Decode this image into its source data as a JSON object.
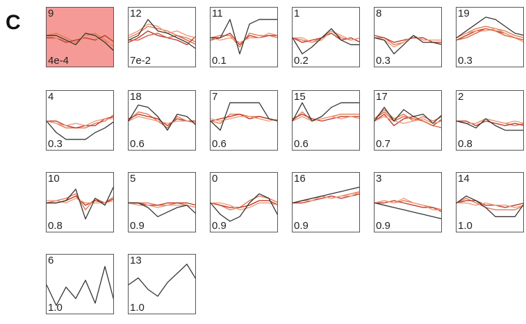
{
  "panel_label": "C",
  "chart_data": {
    "type": "line",
    "x": [
      1,
      2,
      3,
      4,
      5,
      6,
      7,
      8
    ],
    "ylim": [
      -1,
      1
    ],
    "colors": {
      "highlight_fill": "#f59a96",
      "member_line": "#e07a50",
      "alt_line": "#c0392b",
      "centroid_line": "#333333"
    },
    "clusters": [
      {
        "id": "9",
        "pvalue": "4e-4",
        "highlight": true,
        "centroid": [
          0.1,
          0.1,
          -0.1,
          -0.3,
          0.2,
          0.1,
          -0.2,
          -0.6
        ],
        "members": [
          [
            0.1,
            0.2,
            0.0,
            -0.2,
            0.1,
            0.2,
            -0.1,
            -0.4
          ],
          [
            0.0,
            0.0,
            -0.2,
            -0.1,
            0.0,
            -0.1,
            0.1,
            -0.2
          ],
          [
            0.1,
            0.0,
            -0.1,
            -0.3,
            0.1,
            0.0,
            -0.2,
            -0.3
          ]
        ]
      },
      {
        "id": "12",
        "pvalue": "7e-2",
        "highlight": false,
        "centroid": [
          -0.1,
          0.1,
          0.8,
          0.3,
          0.2,
          0.0,
          -0.2,
          -0.5
        ],
        "members": [
          [
            0.0,
            0.2,
            0.5,
            0.4,
            0.3,
            0.1,
            0.0,
            -0.2
          ],
          [
            -0.2,
            0.0,
            0.3,
            0.1,
            0.0,
            -0.1,
            -0.3,
            0.1
          ],
          [
            0.1,
            0.3,
            0.6,
            0.5,
            0.2,
            0.3,
            0.1,
            0.0
          ],
          [
            -0.1,
            -0.1,
            0.1,
            0.2,
            0.0,
            0.1,
            -0.1,
            -0.3
          ]
        ]
      },
      {
        "id": "11",
        "pvalue": "0.1",
        "highlight": false,
        "centroid": [
          0.0,
          0.0,
          0.8,
          -0.7,
          0.6,
          0.8,
          0.8,
          0.8
        ],
        "members": [
          [
            0.0,
            0.1,
            0.1,
            -0.4,
            0.2,
            0.1,
            0.1,
            0.0
          ],
          [
            -0.1,
            0.0,
            0.2,
            -0.3,
            0.1,
            0.0,
            0.1,
            0.1
          ],
          [
            0.0,
            -0.1,
            0.0,
            -0.2,
            0.0,
            0.0,
            0.2,
            0.1
          ]
        ]
      },
      {
        "id": "1",
        "pvalue": "0.2",
        "highlight": false,
        "centroid": [
          0.0,
          -0.7,
          -0.4,
          0.0,
          0.4,
          -0.1,
          -0.3,
          -0.3
        ],
        "members": [
          [
            0.0,
            -0.1,
            -0.2,
            0.0,
            0.3,
            0.0,
            -0.1,
            0.0
          ],
          [
            0.0,
            -0.2,
            -0.1,
            0.0,
            0.2,
            -0.1,
            0.0,
            -0.2
          ],
          [
            0.0,
            0.0,
            -0.2,
            -0.1,
            0.3,
            0.1,
            -0.1,
            0.0
          ]
        ]
      },
      {
        "id": "8",
        "pvalue": "0.3",
        "highlight": false,
        "centroid": [
          0.0,
          -0.1,
          -0.7,
          -0.3,
          0.1,
          -0.2,
          -0.2,
          -0.3
        ],
        "members": [
          [
            0.0,
            0.0,
            -0.3,
            -0.2,
            0.1,
            -0.1,
            -0.1,
            -0.1
          ],
          [
            0.1,
            0.0,
            -0.2,
            -0.1,
            0.0,
            0.0,
            -0.2,
            -0.2
          ],
          [
            0.0,
            -0.1,
            -0.4,
            -0.2,
            0.1,
            -0.1,
            -0.1,
            -0.1
          ]
        ]
      },
      {
        "id": "19",
        "pvalue": "0.3",
        "highlight": false,
        "centroid": [
          0.0,
          0.3,
          0.6,
          0.9,
          0.8,
          0.5,
          0.2,
          0.1
        ],
        "members": [
          [
            0.0,
            0.2,
            0.4,
            0.5,
            0.4,
            0.3,
            0.1,
            0.0
          ],
          [
            -0.1,
            0.1,
            0.3,
            0.4,
            0.3,
            0.2,
            0.0,
            -0.1
          ],
          [
            0.0,
            0.2,
            0.3,
            0.3,
            0.4,
            0.2,
            0.0,
            -0.2
          ],
          [
            -0.1,
            0.0,
            0.2,
            0.4,
            0.3,
            0.1,
            0.0,
            -0.1
          ]
        ]
      },
      {
        "id": "4",
        "pvalue": "0.3",
        "highlight": false,
        "centroid": [
          0.0,
          -0.5,
          -0.8,
          -0.8,
          -0.8,
          -0.5,
          -0.3,
          0.0
        ],
        "members": [
          [
            0.0,
            -0.1,
            -0.3,
            -0.3,
            -0.3,
            -0.1,
            0.0,
            0.3
          ],
          [
            0.0,
            0.0,
            -0.2,
            -0.3,
            -0.2,
            -0.2,
            0.1,
            0.2
          ],
          [
            0.0,
            -0.1,
            -0.2,
            -0.1,
            -0.2,
            0.0,
            0.1,
            0.1
          ]
        ]
      },
      {
        "id": "18",
        "pvalue": "0.6",
        "highlight": false,
        "centroid": [
          0.0,
          0.7,
          0.6,
          0.2,
          -0.4,
          0.3,
          0.2,
          -0.2
        ],
        "members": [
          [
            0.0,
            0.4,
            0.3,
            0.0,
            -0.3,
            0.2,
            0.0,
            -0.1
          ],
          [
            0.1,
            0.3,
            0.2,
            0.1,
            -0.2,
            0.1,
            0.0,
            0.0
          ],
          [
            0.0,
            0.2,
            0.1,
            0.0,
            -0.1,
            0.0,
            0.0,
            -0.1
          ]
        ]
      },
      {
        "id": "7",
        "pvalue": "0.6",
        "highlight": false,
        "centroid": [
          0.0,
          -0.4,
          0.8,
          0.8,
          0.8,
          0.8,
          0.1,
          0.0
        ],
        "members": [
          [
            0.0,
            -0.1,
            0.3,
            0.3,
            0.2,
            0.2,
            0.1,
            0.0
          ],
          [
            0.0,
            0.1,
            0.2,
            0.3,
            0.1,
            0.2,
            0.1,
            0.0
          ],
          [
            0.1,
            0.0,
            0.1,
            0.2,
            0.2,
            0.1,
            0.0,
            0.1
          ]
        ]
      },
      {
        "id": "15",
        "pvalue": "0.6",
        "highlight": false,
        "centroid": [
          0.0,
          0.8,
          0.0,
          0.2,
          0.6,
          0.8,
          0.8,
          0.8
        ],
        "members": [
          [
            0.0,
            0.4,
            0.0,
            0.1,
            0.2,
            0.3,
            0.3,
            0.3
          ],
          [
            0.1,
            0.3,
            0.1,
            0.0,
            0.1,
            0.2,
            0.2,
            0.2
          ],
          [
            0.0,
            0.2,
            0.0,
            0.1,
            0.2,
            0.1,
            0.2,
            0.1
          ]
        ]
      },
      {
        "id": "17",
        "pvalue": "0.7",
        "highlight": false,
        "centroid": [
          0.0,
          0.6,
          0.0,
          0.5,
          0.2,
          0.3,
          -0.1,
          0.3
        ],
        "members": [
          [
            0.1,
            0.5,
            0.1,
            0.3,
            0.0,
            0.2,
            0.0,
            0.2
          ],
          [
            0.0,
            0.3,
            -0.2,
            0.1,
            0.2,
            0.0,
            -0.2,
            0.1
          ],
          [
            0.0,
            0.2,
            0.0,
            -0.1,
            0.0,
            0.1,
            -0.1,
            0.0
          ],
          [
            0.1,
            0.4,
            0.0,
            0.2,
            0.1,
            0.0,
            -0.2,
            -0.3
          ]
        ]
      },
      {
        "id": "2",
        "pvalue": "0.8",
        "highlight": false,
        "centroid": [
          0.0,
          -0.1,
          -0.3,
          0.1,
          -0.2,
          -0.4,
          -0.4,
          -0.4
        ],
        "members": [
          [
            0.0,
            -0.1,
            -0.1,
            0.1,
            0.0,
            -0.1,
            -0.2,
            -0.1
          ],
          [
            0.0,
            0.0,
            -0.2,
            0.0,
            -0.1,
            -0.2,
            -0.1,
            -0.2
          ],
          [
            0.0,
            -0.1,
            -0.1,
            0.1,
            0.0,
            -0.1,
            0.0,
            -0.1
          ]
        ]
      },
      {
        "id": "10",
        "pvalue": "0.8",
        "highlight": false,
        "centroid": [
          0.0,
          0.0,
          0.1,
          0.6,
          -0.7,
          0.2,
          -0.1,
          0.8
        ],
        "members": [
          [
            0.0,
            0.1,
            0.2,
            0.4,
            -0.3,
            0.2,
            0.0,
            0.3
          ],
          [
            0.0,
            0.0,
            0.1,
            0.3,
            -0.1,
            0.1,
            0.0,
            0.2
          ],
          [
            0.1,
            0.1,
            0.0,
            0.2,
            0.0,
            0.0,
            0.0,
            0.1
          ]
        ]
      },
      {
        "id": "5",
        "pvalue": "0.9",
        "highlight": false,
        "centroid": [
          0.0,
          0.0,
          -0.2,
          -0.6,
          -0.4,
          -0.2,
          -0.1,
          -0.5
        ],
        "members": [
          [
            0.0,
            0.0,
            0.0,
            -0.1,
            -0.1,
            0.0,
            -0.1,
            -0.2
          ],
          [
            0.0,
            0.0,
            -0.1,
            -0.1,
            0.0,
            0.0,
            0.0,
            -0.1
          ],
          [
            0.0,
            -0.1,
            -0.1,
            -0.2,
            -0.1,
            -0.1,
            -0.1,
            -0.2
          ]
        ]
      },
      {
        "id": "0",
        "pvalue": "0.9",
        "highlight": false,
        "centroid": [
          0.0,
          -0.5,
          -0.8,
          -0.6,
          0.0,
          0.4,
          0.2,
          -0.6
        ],
        "members": [
          [
            0.0,
            -0.1,
            -0.3,
            -0.2,
            0.1,
            0.3,
            0.2,
            0.0
          ],
          [
            0.0,
            -0.1,
            -0.2,
            -0.2,
            -0.1,
            0.1,
            0.1,
            -0.1
          ],
          [
            0.0,
            0.0,
            -0.1,
            -0.3,
            -0.2,
            0.0,
            0.0,
            -0.1
          ]
        ]
      },
      {
        "id": "16",
        "pvalue": "0.9",
        "highlight": false,
        "centroid": [
          0.0,
          0.1,
          0.2,
          0.3,
          0.4,
          0.5,
          0.6,
          0.7
        ],
        "members": [
          [
            0.0,
            0.1,
            0.2,
            0.3,
            0.2,
            0.3,
            0.4,
            0.5
          ],
          [
            0.0,
            0.0,
            0.1,
            0.2,
            0.3,
            0.2,
            0.3,
            0.4
          ],
          [
            0.0,
            0.1,
            0.1,
            0.3,
            0.2,
            0.3,
            0.3,
            0.5
          ]
        ]
      },
      {
        "id": "3",
        "pvalue": "0.9",
        "highlight": false,
        "centroid": [
          0.0,
          -0.1,
          -0.2,
          -0.3,
          -0.4,
          -0.5,
          -0.6,
          -0.7
        ],
        "members": [
          [
            0.0,
            0.1,
            0.0,
            0.1,
            0.0,
            -0.1,
            -0.2,
            -0.3
          ],
          [
            0.0,
            0.0,
            0.1,
            0.0,
            -0.1,
            -0.2,
            -0.2,
            -0.4
          ],
          [
            0.0,
            0.1,
            0.0,
            0.2,
            0.0,
            -0.1,
            -0.3,
            -0.3
          ]
        ]
      },
      {
        "id": "14",
        "pvalue": "1.0",
        "highlight": false,
        "centroid": [
          0.0,
          0.3,
          0.1,
          -0.2,
          -0.6,
          -0.6,
          -0.6,
          0.0
        ],
        "members": [
          [
            0.0,
            0.2,
            0.0,
            -0.2,
            -0.3,
            -0.3,
            -0.3,
            -0.1
          ],
          [
            0.0,
            0.1,
            0.1,
            -0.1,
            -0.1,
            -0.2,
            -0.1,
            0.0
          ],
          [
            0.0,
            0.0,
            -0.1,
            0.0,
            -0.1,
            -0.1,
            -0.2,
            -0.1
          ]
        ]
      },
      {
        "id": "6",
        "pvalue": "1.0",
        "highlight": false,
        "centroid": [
          0.0,
          -0.9,
          -0.1,
          -0.6,
          0.2,
          -0.8,
          0.8,
          -0.8
        ],
        "members": []
      },
      {
        "id": "13",
        "pvalue": "1.0",
        "highlight": false,
        "centroid": [
          0.0,
          0.3,
          -0.2,
          -0.5,
          0.1,
          0.5,
          0.9,
          0.2
        ],
        "members": []
      }
    ]
  }
}
